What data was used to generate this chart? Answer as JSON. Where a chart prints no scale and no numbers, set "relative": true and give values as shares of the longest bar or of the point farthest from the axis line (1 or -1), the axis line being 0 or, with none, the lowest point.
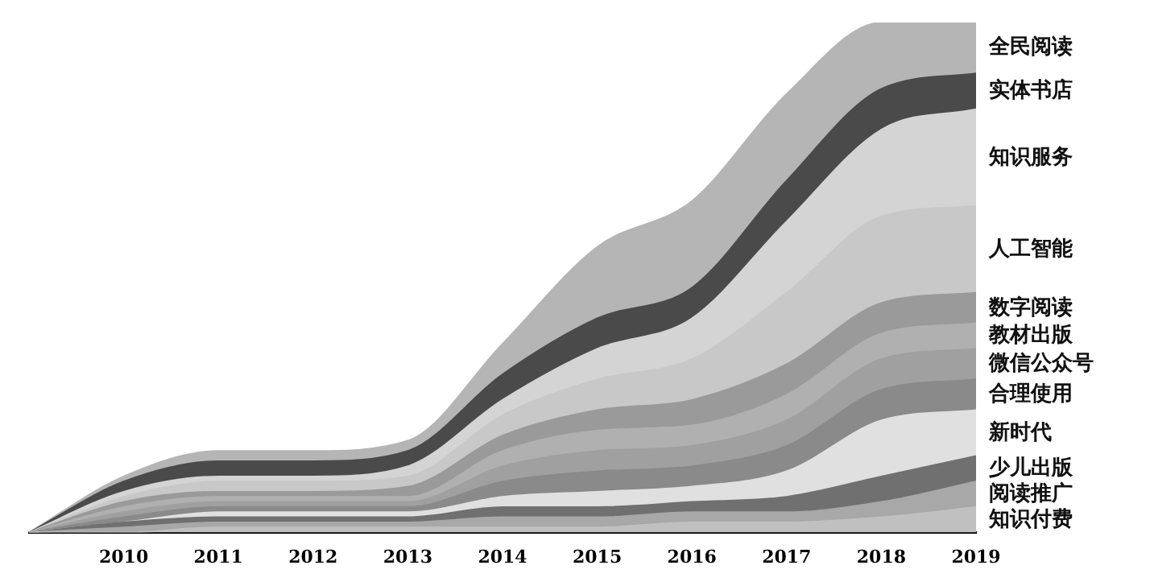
{
  "chart_data": {
    "type": "area",
    "stacked": true,
    "relative": true,
    "legend": false,
    "grid": false,
    "categories": [
      null,
      "2010",
      "2011",
      "2012",
      "2013",
      "2014",
      "2015",
      "2016",
      "2017",
      "2018",
      "2019"
    ],
    "series": [
      {
        "name": "知识付费",
        "color": "#c0c0c0",
        "values": [
          0,
          0,
          0.01,
          0.01,
          0.01,
          0.01,
          0.01,
          0.02,
          0.02,
          0.03,
          0.05
        ]
      },
      {
        "name": "阅读推广",
        "color": "#a8a8a8",
        "values": [
          0,
          0.01,
          0.01,
          0.01,
          0.01,
          0.02,
          0.02,
          0.02,
          0.02,
          0.03,
          0.05
        ]
      },
      {
        "name": "少儿出版",
        "color": "#707070",
        "values": [
          0,
          0.01,
          0.01,
          0.01,
          0.01,
          0.02,
          0.02,
          0.02,
          0.03,
          0.05,
          0.05
        ]
      },
      {
        "name": "新时代",
        "color": "#e0e0e0",
        "values": [
          0,
          0,
          0.01,
          0.01,
          0.01,
          0.02,
          0.03,
          0.03,
          0.05,
          0.11,
          0.09
        ]
      },
      {
        "name": "合理使用",
        "color": "#8a8a8a",
        "values": [
          0,
          0.01,
          0.01,
          0.01,
          0.01,
          0.03,
          0.04,
          0.04,
          0.05,
          0.06,
          0.06
        ]
      },
      {
        "name": "微信公众号",
        "color": "#a0a0a0",
        "values": [
          0,
          0.01,
          0.01,
          0.01,
          0.01,
          0.03,
          0.04,
          0.04,
          0.05,
          0.06,
          0.06
        ]
      },
      {
        "name": "教材出版",
        "color": "#b0b0b0",
        "values": [
          0,
          0.01,
          0.01,
          0.01,
          0.01,
          0.03,
          0.04,
          0.04,
          0.05,
          0.05,
          0.05
        ]
      },
      {
        "name": "数字阅读",
        "color": "#9a9a9a",
        "values": [
          0,
          0.01,
          0.01,
          0.01,
          0.02,
          0.03,
          0.04,
          0.05,
          0.06,
          0.06,
          0.06
        ]
      },
      {
        "name": "人工智能",
        "color": "#c8c8c8",
        "values": [
          0,
          0.01,
          0.02,
          0.02,
          0.02,
          0.04,
          0.06,
          0.08,
          0.14,
          0.17,
          0.17
        ]
      },
      {
        "name": "知识服务",
        "color": "#d4d4d4",
        "values": [
          0,
          0.01,
          0.01,
          0.01,
          0.02,
          0.03,
          0.06,
          0.08,
          0.14,
          0.17,
          0.19
        ]
      },
      {
        "name": "实体书店",
        "color": "#4a4a4a",
        "values": [
          0,
          0.02,
          0.03,
          0.03,
          0.03,
          0.05,
          0.06,
          0.06,
          0.08,
          0.08,
          0.07
        ]
      },
      {
        "name": "全民阅读",
        "color": "#b5b5b5",
        "values": [
          0,
          0.01,
          0.02,
          0.02,
          0.02,
          0.06,
          0.14,
          0.17,
          0.17,
          0.13,
          0.1
        ]
      }
    ]
  }
}
